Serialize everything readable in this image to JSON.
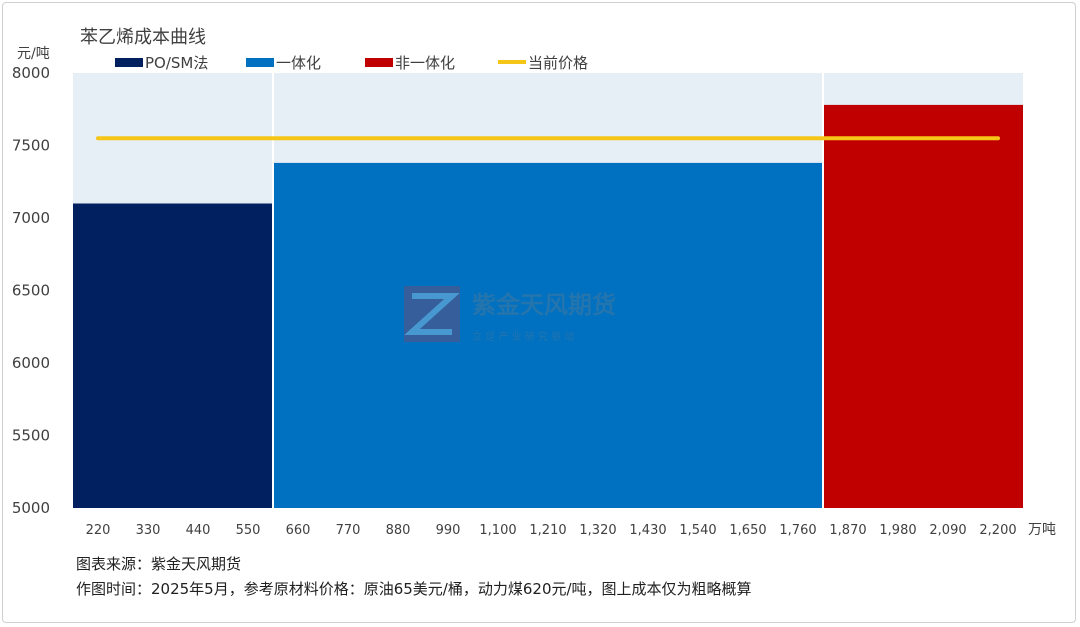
{
  "chart_data": {
    "type": "bar",
    "title": "苯乙烯成本曲线",
    "ylabel": "元/吨",
    "xlabel": "万吨",
    "ylim": [
      5000,
      8000
    ],
    "yticks": [
      "5000",
      "5500",
      "6000",
      "6500",
      "7000",
      "7500",
      "8000"
    ],
    "xlim": [
      165,
      2255
    ],
    "xticks": [
      "220",
      "330",
      "440",
      "550",
      "660",
      "770",
      "880",
      "990",
      "1,100",
      "1,210",
      "1,320",
      "1,430",
      "1,540",
      "1,650",
      "1,760",
      "1,870",
      "1,980",
      "2,090",
      "2,200"
    ],
    "xtick_values": [
      220,
      330,
      440,
      550,
      660,
      770,
      880,
      990,
      1100,
      1210,
      1320,
      1430,
      1540,
      1650,
      1760,
      1870,
      1980,
      2090,
      2200
    ],
    "series": [
      {
        "name": "PO/SM法",
        "color": "#002060",
        "x_start": 165,
        "x_end": 605,
        "value": 7100
      },
      {
        "name": "一体化",
        "color": "#0070C0",
        "x_start": 605,
        "x_end": 1815,
        "value": 7380
      },
      {
        "name": "非一体化",
        "color": "#C00000",
        "x_start": 1815,
        "x_end": 2255,
        "value": 7780
      }
    ],
    "price_line": {
      "name": "当前价格",
      "color": "#F5C518",
      "value": 7550,
      "x_start": 220,
      "x_end": 2200
    },
    "legend_position": "top",
    "grid": false
  },
  "watermark": {
    "name": "紫金天风期货",
    "slogan": "立 足 产 业   研 究 驱 动"
  },
  "notes": {
    "source": "图表来源：紫金天风期货",
    "time": "作图时间：2025年5月，参考原材料价格：原油65美元/桶，动力煤620元/吨，图上成本仅为粗略概算"
  }
}
